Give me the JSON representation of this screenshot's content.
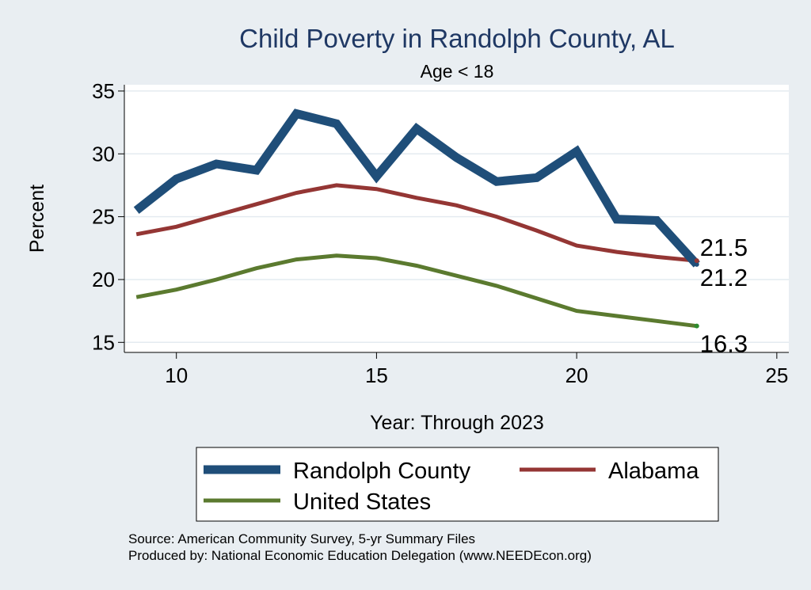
{
  "chart_data": {
    "type": "line",
    "title": "Child Poverty in Randolph County, AL",
    "subtitle": "Age < 18",
    "xlabel": "Year: Through 2023",
    "ylabel": "Percent",
    "xlim": [
      8.7,
      25.3
    ],
    "ylim": [
      14.2,
      35.5
    ],
    "xticks": [
      10,
      15,
      20,
      25
    ],
    "yticks": [
      15,
      20,
      25,
      30,
      35
    ],
    "x": [
      9,
      10,
      11,
      12,
      13,
      14,
      15,
      16,
      17,
      18,
      19,
      20,
      21,
      22,
      23
    ],
    "series": [
      {
        "name": "Randolph County",
        "color": "#1f4e79",
        "values": [
          25.5,
          28.0,
          29.2,
          28.7,
          33.2,
          32.4,
          28.2,
          32.0,
          29.7,
          27.8,
          28.1,
          30.2,
          24.8,
          24.7,
          21.2
        ],
        "end_label": "21.2"
      },
      {
        "name": "Alabama",
        "color": "#943634",
        "values": [
          23.6,
          24.2,
          25.1,
          26.0,
          26.9,
          27.5,
          27.2,
          26.5,
          25.9,
          25.0,
          23.9,
          22.7,
          22.2,
          21.8,
          21.5
        ],
        "end_label": "21.5"
      },
      {
        "name": "United States",
        "color": "#5b7a2f",
        "values": [
          18.6,
          19.2,
          20.0,
          20.9,
          21.6,
          21.9,
          21.7,
          21.1,
          20.3,
          19.5,
          18.5,
          17.5,
          17.1,
          16.7,
          16.3
        ],
        "end_label": "16.3"
      }
    ],
    "legend": {
      "position": "bottom"
    }
  },
  "notes": {
    "source": "Source: American Community Survey, 5-yr Summary Files",
    "produced": "Produced by: National Economic Education Delegation (www.NEEDEcon.org)"
  }
}
